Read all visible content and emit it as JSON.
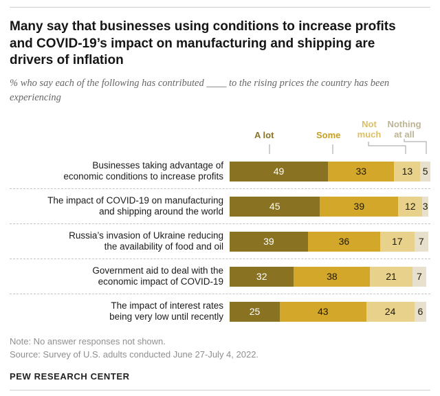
{
  "header": {
    "title": "Many say that businesses using conditions to increase profits and COVID-19’s impact on manufacturing and shipping are drivers of inflation",
    "subtitle": "% who say each of the following has contributed ____ to the rising prices the country has been experiencing"
  },
  "chart_data": {
    "type": "bar",
    "stacked": true,
    "orientation": "horizontal",
    "unit": "%",
    "xlim": [
      0,
      100
    ],
    "value_labels": "inside",
    "legend_position": "top",
    "categories": [
      "Businesses taking advantage of\neconomic conditions to increase profits",
      "The impact of COVID-19 on manufacturing\nand shipping around the world",
      "Russia’s invasion of Ukraine reducing\nthe availability of food and oil",
      "Government aid to deal with the\neconomic impact of COVID-19",
      "The impact of interest rates\nbeing very low until recently"
    ],
    "series": [
      {
        "name": "A lot",
        "color": "#8a7223",
        "text_color": "#ffffff",
        "values": [
          49,
          45,
          39,
          32,
          25
        ]
      },
      {
        "name": "Some",
        "color": "#d3a72a",
        "text_color": "#1f1a05",
        "values": [
          33,
          39,
          36,
          38,
          43
        ]
      },
      {
        "name": "Not much",
        "color": "#e8d28b",
        "text_color": "#1f1a05",
        "values": [
          13,
          12,
          17,
          21,
          24
        ]
      },
      {
        "name": "Nothing at all",
        "color": "#e6e0cd",
        "text_color": "#1f1a05",
        "values": [
          5,
          3,
          7,
          7,
          6
        ]
      }
    ],
    "legend": [
      {
        "label": "A lot",
        "color": "#8a7223"
      },
      {
        "label": "Some",
        "color": "#c79d22"
      },
      {
        "label": "Not\nmuch",
        "color": "#ddbf63"
      },
      {
        "label": "Nothing\nat all",
        "color": "#bcb493"
      }
    ]
  },
  "footer": {
    "note": "Note: No answer responses not shown.",
    "source": "Source: Survey of U.S. adults conducted June 27-July 4, 2022.",
    "brand": "PEW RESEARCH CENTER"
  }
}
